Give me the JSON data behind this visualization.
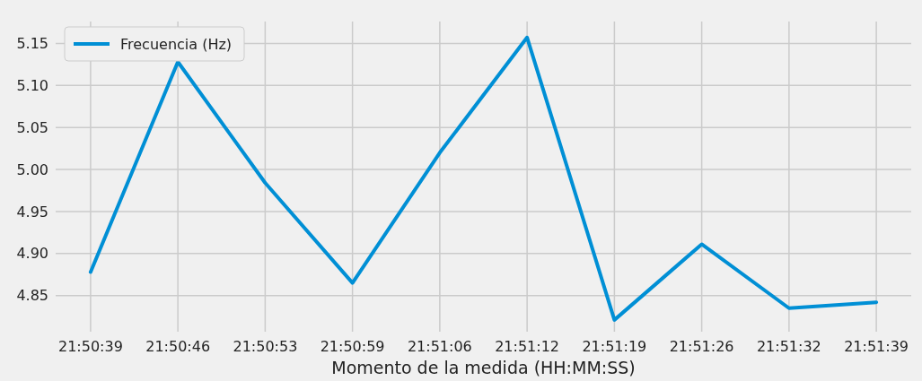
{
  "chart_data": {
    "type": "line",
    "xlabel": "Momento de la medida (HH:MM:SS)",
    "categories": [
      "21:50:39",
      "21:50:46",
      "21:50:53",
      "21:50:59",
      "21:51:06",
      "21:51:12",
      "21:51:19",
      "21:51:26",
      "21:51:32",
      "21:51:39"
    ],
    "series": [
      {
        "name": "Frecuencia (Hz)",
        "color": "#008fd5",
        "values": [
          4.878,
          5.128,
          4.984,
          4.865,
          5.02,
          5.157,
          4.821,
          4.911,
          4.835,
          4.842
        ]
      }
    ],
    "ylim": [
      4.807,
      5.176
    ],
    "yticks": [
      4.85,
      {
        "value": 4.9,
        "label": "4.90"
      },
      4.95,
      {
        "value": 5.0,
        "label": "5.00"
      },
      5.05,
      {
        "value": 5.1,
        "label": "5.10"
      },
      5.15
    ],
    "grid": true,
    "legend": "top left",
    "marker": "none",
    "line_style": "solid"
  }
}
